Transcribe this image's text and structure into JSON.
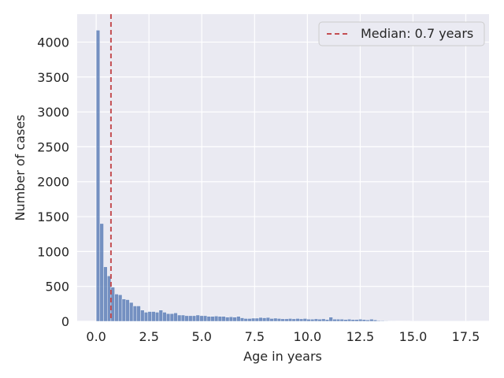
{
  "chart_data": {
    "type": "bar",
    "subtype": "histogram",
    "xlabel": "Age in years",
    "ylabel": "Number of cases",
    "xlim": [
      -0.9,
      18.6
    ],
    "ylim": [
      0,
      4400
    ],
    "x_ticks": [
      0.0,
      2.5,
      5.0,
      7.5,
      10.0,
      12.5,
      15.0,
      17.5
    ],
    "x_tick_labels": [
      "0.0",
      "2.5",
      "5.0",
      "7.5",
      "10.0",
      "12.5",
      "15.0",
      "17.5"
    ],
    "y_ticks": [
      0,
      500,
      1000,
      1500,
      2000,
      2500,
      3000,
      3500,
      4000
    ],
    "y_tick_labels": [
      "0",
      "500",
      "1000",
      "1500",
      "2000",
      "2500",
      "3000",
      "3500",
      "4000"
    ],
    "grid": true,
    "bin_start": 0.0,
    "bin_width": 0.175,
    "bar_color": "#4c72b0",
    "counts": [
      4170,
      1400,
      780,
      650,
      490,
      390,
      380,
      320,
      310,
      270,
      220,
      220,
      160,
      130,
      140,
      140,
      130,
      160,
      130,
      110,
      110,
      120,
      90,
      90,
      80,
      80,
      80,
      90,
      80,
      80,
      70,
      70,
      75,
      70,
      70,
      60,
      65,
      60,
      70,
      50,
      40,
      40,
      45,
      45,
      55,
      50,
      55,
      40,
      45,
      40,
      35,
      35,
      40,
      35,
      40,
      35,
      40,
      30,
      30,
      35,
      30,
      35,
      25,
      60,
      30,
      30,
      30,
      25,
      30,
      25,
      25,
      30,
      25,
      20,
      30,
      20,
      10,
      8,
      6,
      5,
      5,
      4,
      4,
      3,
      3,
      2,
      2,
      2,
      1,
      1,
      1,
      1,
      1,
      1,
      1,
      1,
      1,
      1,
      1,
      1,
      1
    ],
    "median": {
      "value": 0.7,
      "label": "Median: 0.7 years",
      "color": "#c44e52"
    },
    "legend_placement": "top-right",
    "background": "#eaeaf2"
  }
}
